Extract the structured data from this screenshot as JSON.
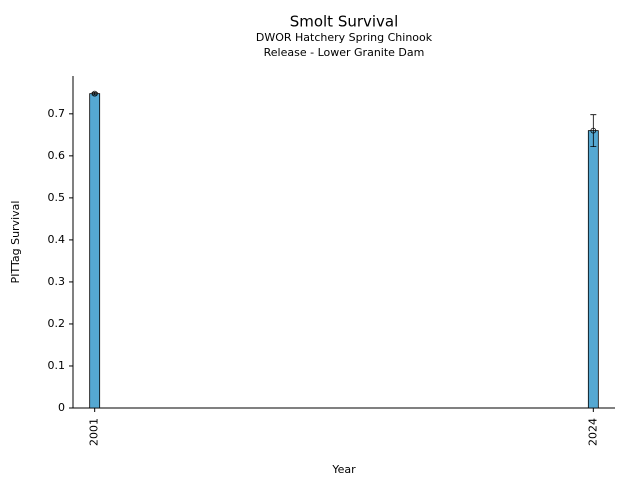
{
  "chart_data": {
    "type": "bar",
    "title": "Smolt Survival",
    "subtitle": [
      "DWOR Hatchery Spring Chinook",
      "Release - Lower Granite Dam"
    ],
    "x_label": "Year",
    "y_label": "PITTag Survival",
    "x": [
      2001,
      2024
    ],
    "values": [
      0.748,
      0.66
    ],
    "errors": [
      0.003,
      0.038
    ],
    "color": "#55a8d2",
    "xlim": [
      2000,
      2025
    ],
    "xticks": [
      2001,
      2024
    ],
    "ylim": [
      0,
      0.79
    ],
    "yticks": [
      0,
      0.1,
      0.2,
      0.3,
      0.4,
      0.5,
      0.6,
      0.7
    ]
  }
}
